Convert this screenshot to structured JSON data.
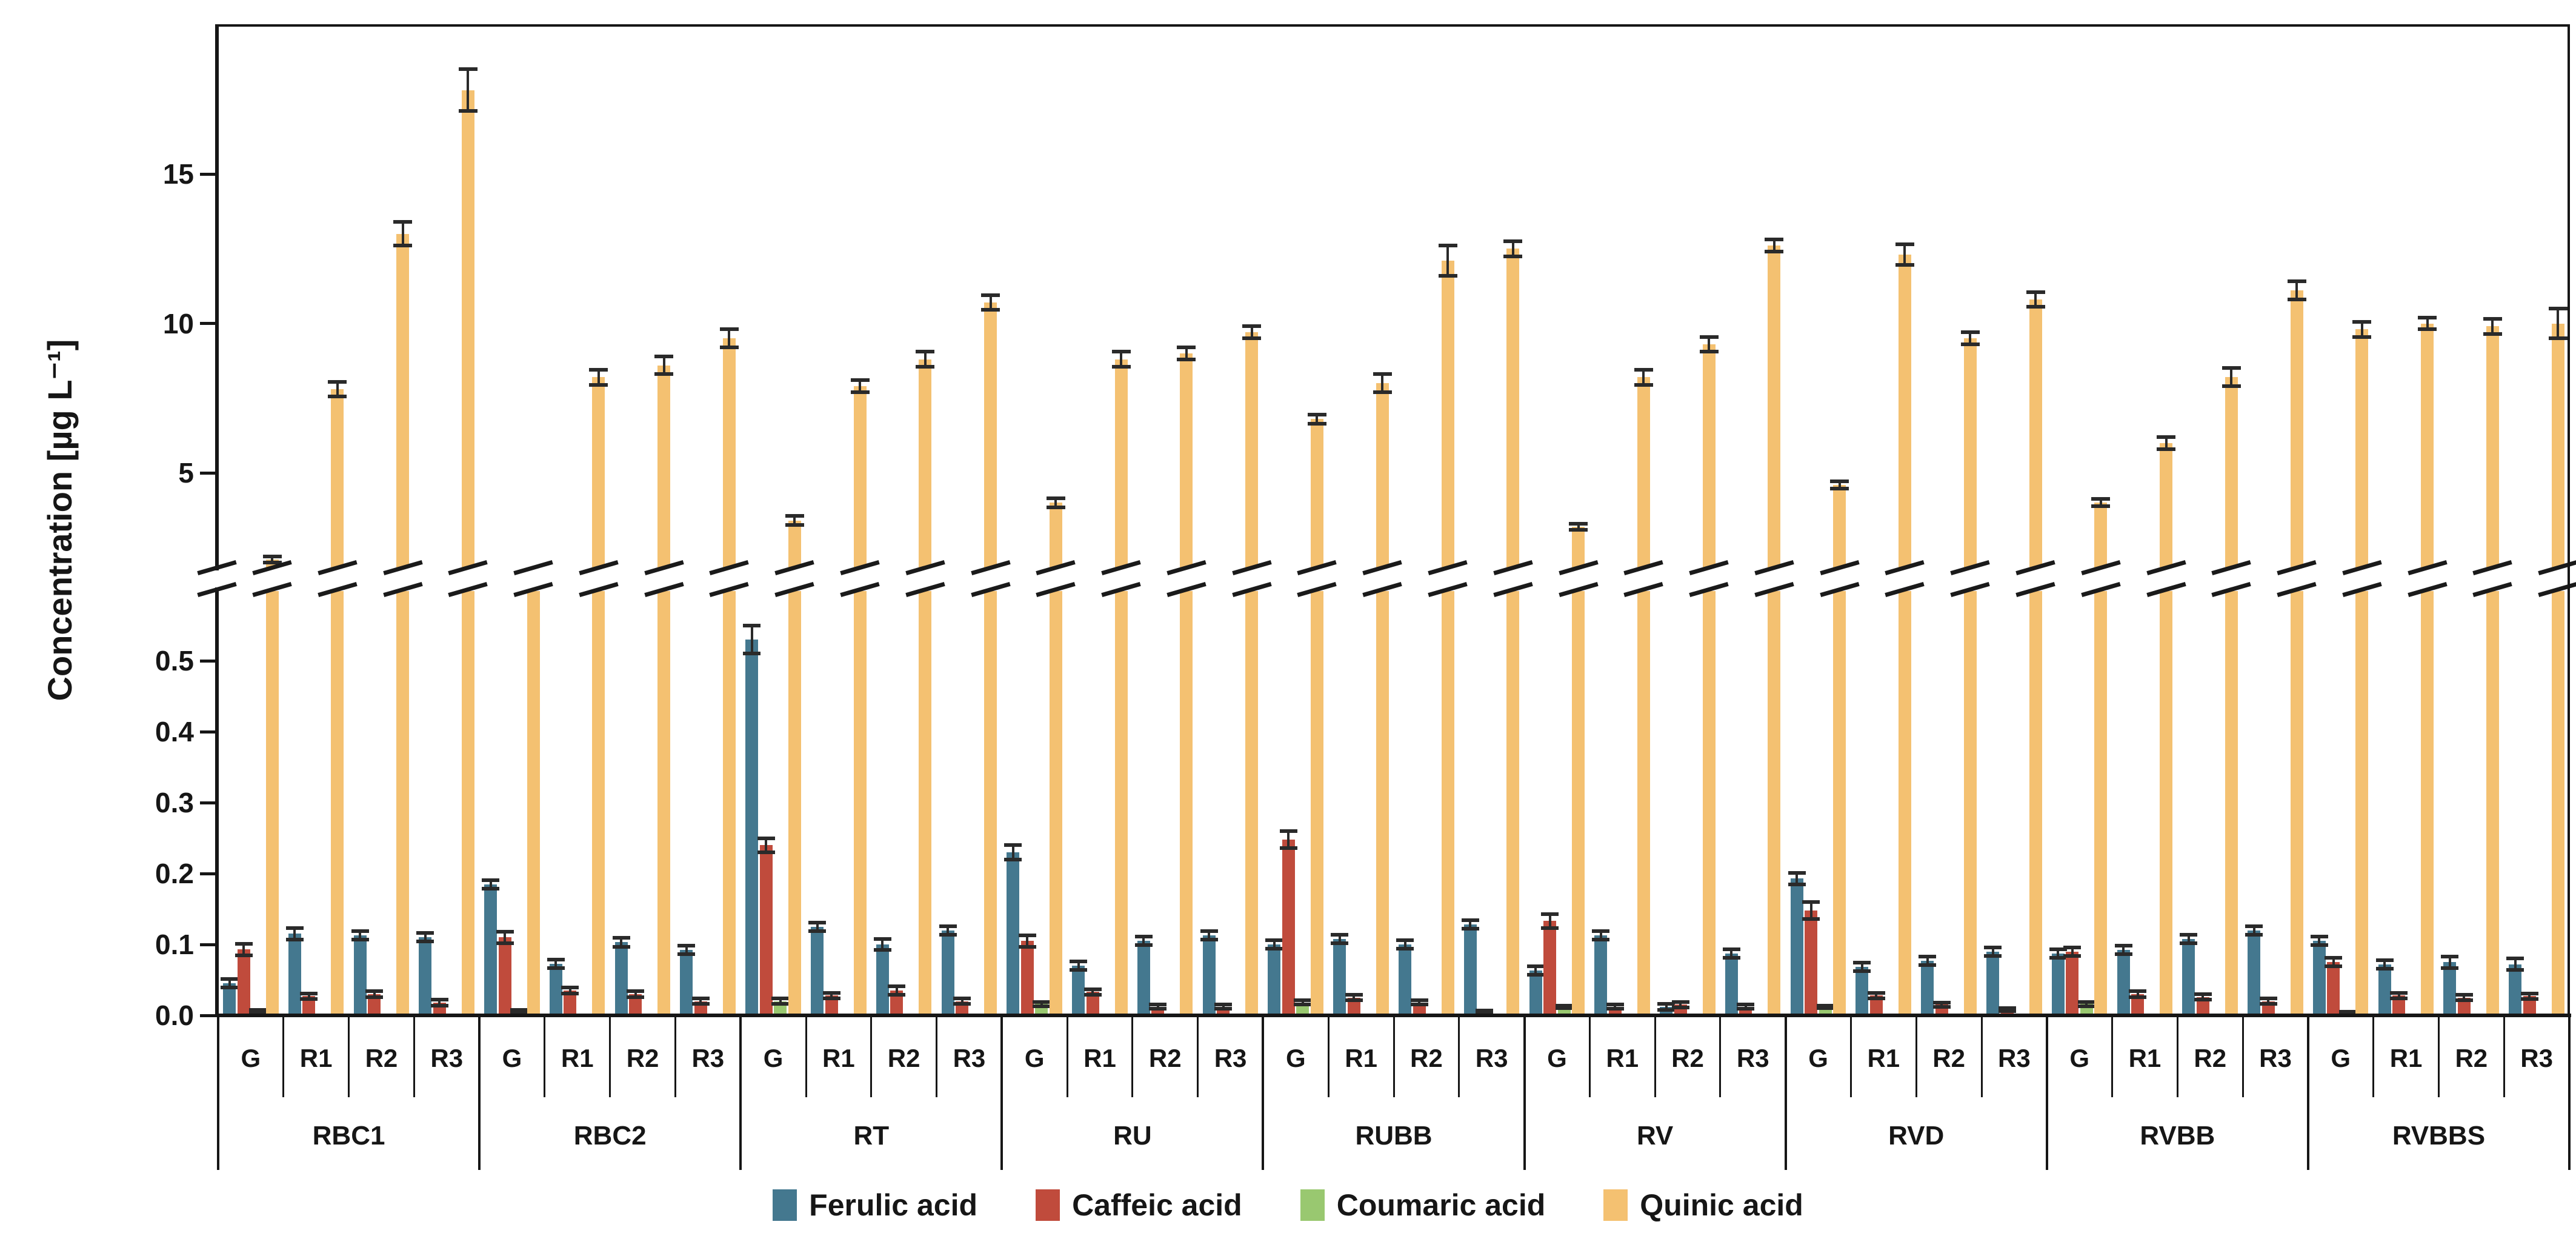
{
  "y_axis": {
    "title": "Concentration [µg L⁻¹]",
    "upper_ticks": [
      {
        "label": "5",
        "value": 5
      },
      {
        "label": "10",
        "value": 10
      },
      {
        "label": "15",
        "value": 15
      }
    ],
    "lower_ticks": [
      {
        "label": "0.0",
        "value": 0.0
      },
      {
        "label": "0.1",
        "value": 0.1
      },
      {
        "label": "0.2",
        "value": 0.2
      },
      {
        "label": "0.3",
        "value": 0.3
      },
      {
        "label": "0.4",
        "value": 0.4
      },
      {
        "label": "0.5",
        "value": 0.5
      }
    ]
  },
  "legend": [
    {
      "label": "Ferulic acid",
      "color": "#44788F"
    },
    {
      "label": "Caffeic acid",
      "color": "#C04B3C"
    },
    {
      "label": "Coumaric acid",
      "color": "#99C870"
    },
    {
      "label": "Quinic acid",
      "color": "#F4C171"
    }
  ],
  "chart_data": {
    "type": "bar",
    "title": "",
    "xlabel": "",
    "ylabel": "Concentration [µg L⁻¹]",
    "axis_break": {
      "lower_panel_max": 0.6,
      "upper_panel_min": 1.8,
      "upper_panel_max": 20,
      "upper_ticks": [
        5,
        10,
        15
      ],
      "lower_ticks": [
        0.0,
        0.1,
        0.2,
        0.3,
        0.4,
        0.5
      ]
    },
    "groups": [
      "RBC1",
      "RBC2",
      "RT",
      "RU",
      "RUBB",
      "RV",
      "RVD",
      "RVBB",
      "RVBBS"
    ],
    "conditions": [
      "G",
      "R1",
      "R2",
      "R3"
    ],
    "series": [
      {
        "name": "Ferulic acid",
        "color": "#44788F",
        "values": [
          [
            0.045,
            0.115,
            0.113,
            0.11
          ],
          [
            0.185,
            0.073,
            0.103,
            0.092
          ],
          [
            0.53,
            0.125,
            0.1,
            0.12
          ],
          [
            0.23,
            0.07,
            0.105,
            0.113
          ],
          [
            0.1,
            0.108,
            0.1,
            0.128
          ],
          [
            0.063,
            0.113,
            0.012,
            0.087
          ],
          [
            0.193,
            0.068,
            0.077,
            0.09
          ],
          [
            0.087,
            0.092,
            0.108,
            0.12
          ],
          [
            0.105,
            0.072,
            0.075,
            0.072
          ]
        ],
        "errors": [
          [
            0.006,
            0.008,
            0.006,
            0.006
          ],
          [
            0.006,
            0.006,
            0.006,
            0.006
          ],
          [
            0.02,
            0.006,
            0.008,
            0.006
          ],
          [
            0.01,
            0.006,
            0.006,
            0.006
          ],
          [
            0.006,
            0.006,
            0.006,
            0.006
          ],
          [
            0.006,
            0.006,
            0.004,
            0.006
          ],
          [
            0.008,
            0.006,
            0.006,
            0.006
          ],
          [
            0.006,
            0.006,
            0.006,
            0.006
          ],
          [
            0.006,
            0.006,
            0.008,
            0.008
          ]
        ]
      },
      {
        "name": "Caffeic acid",
        "color": "#C04B3C",
        "values": [
          [
            0.093,
            0.027,
            0.03,
            0.018
          ],
          [
            0.11,
            0.035,
            0.03,
            0.02
          ],
          [
            0.24,
            0.028,
            0.035,
            0.02
          ],
          [
            0.105,
            0.033,
            0.012,
            0.012
          ],
          [
            0.248,
            0.025,
            0.018,
            0.005
          ],
          [
            0.133,
            0.012,
            0.015,
            0.012
          ],
          [
            0.148,
            0.028,
            0.015,
            0.008
          ],
          [
            0.09,
            0.03,
            0.026,
            0.02
          ],
          [
            0.075,
            0.028,
            0.025,
            0.027
          ]
        ],
        "errors": [
          [
            0.008,
            0.004,
            0.004,
            0.004
          ],
          [
            0.008,
            0.004,
            0.004,
            0.004
          ],
          [
            0.01,
            0.004,
            0.006,
            0.004
          ],
          [
            0.008,
            0.004,
            0.003,
            0.003
          ],
          [
            0.012,
            0.004,
            0.003,
            0.002
          ],
          [
            0.01,
            0.003,
            0.004,
            0.003
          ],
          [
            0.012,
            0.004,
            0.003,
            0.002
          ],
          [
            0.006,
            0.004,
            0.004,
            0.004
          ],
          [
            0.006,
            0.004,
            0.004,
            0.004
          ]
        ]
      },
      {
        "name": "Coumaric acid",
        "color": "#99C870",
        "values": [
          [
            0.006,
            0.002,
            0.002,
            0.002
          ],
          [
            0.006,
            0.002,
            0.002,
            0.002
          ],
          [
            0.02,
            0.002,
            0.002,
            0.002
          ],
          [
            0.016,
            0.002,
            0.002,
            0.002
          ],
          [
            0.018,
            0.002,
            0.002,
            0.002
          ],
          [
            0.012,
            0.002,
            0.002,
            0.002
          ],
          [
            0.012,
            0.002,
            0.002,
            0.002
          ],
          [
            0.016,
            0.002,
            0.002,
            0.002
          ],
          [
            0.003,
            0.002,
            0.002,
            0.002
          ]
        ],
        "errors": [
          [
            0.002,
            0,
            0,
            0
          ],
          [
            0.002,
            0,
            0,
            0
          ],
          [
            0.004,
            0,
            0,
            0
          ],
          [
            0.003,
            0,
            0,
            0
          ],
          [
            0.003,
            0,
            0,
            0
          ],
          [
            0.002,
            0,
            0,
            0
          ],
          [
            0.002,
            0,
            0,
            0
          ],
          [
            0.003,
            0,
            0,
            0
          ],
          [
            0.001,
            0,
            0,
            0
          ]
        ]
      },
      {
        "name": "Quinic acid",
        "color": "#F4C171",
        "values": [
          [
            2.1,
            7.8,
            13.0,
            17.8
          ],
          [
            1.6,
            8.2,
            8.6,
            9.5
          ],
          [
            3.4,
            7.9,
            8.8,
            10.7
          ],
          [
            4.0,
            8.8,
            9.0,
            9.7
          ],
          [
            6.8,
            8.0,
            12.1,
            12.5
          ],
          [
            3.2,
            8.2,
            9.3,
            12.6
          ],
          [
            4.6,
            12.3,
            9.5,
            10.8
          ],
          [
            4.0,
            6.0,
            8.2,
            11.1
          ],
          [
            9.8,
            10.0,
            9.9,
            10.0
          ]
        ],
        "errors": [
          [
            0.1,
            0.25,
            0.4,
            0.7
          ],
          [
            0,
            0.25,
            0.3,
            0.3
          ],
          [
            0.15,
            0.2,
            0.25,
            0.25
          ],
          [
            0.15,
            0.25,
            0.2,
            0.2
          ],
          [
            0.15,
            0.3,
            0.5,
            0.25
          ],
          [
            0.1,
            0.25,
            0.25,
            0.2
          ],
          [
            0.12,
            0.35,
            0.2,
            0.25
          ],
          [
            0.12,
            0.2,
            0.3,
            0.3
          ],
          [
            0.25,
            0.2,
            0.25,
            0.5
          ]
        ]
      }
    ]
  }
}
